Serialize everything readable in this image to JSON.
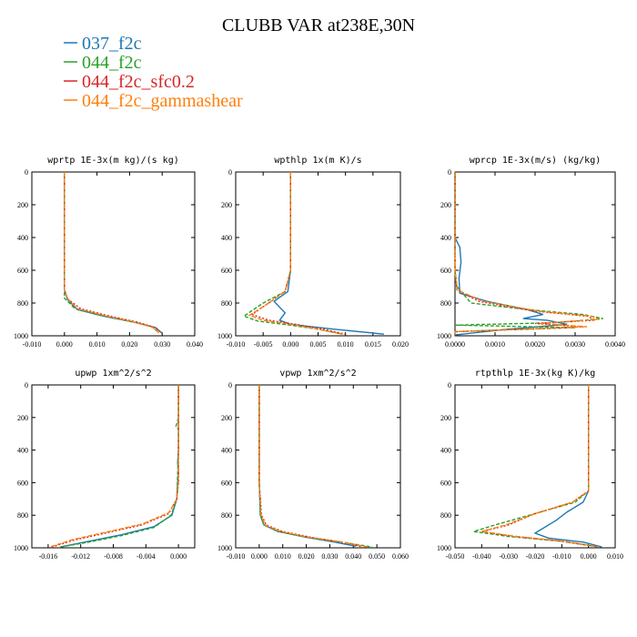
{
  "figure": {
    "title": "CLUBB VAR at238E,30N",
    "legend": [
      {
        "label": "037_f2c",
        "color": "#1f77b4"
      },
      {
        "label": "044_f2c",
        "color": "#2ca02c"
      },
      {
        "label": "044_f2c_sfc0.2",
        "color": "#d62728"
      },
      {
        "label": "044_f2c_gammashear",
        "color": "#ff7f0e"
      }
    ]
  },
  "chart_data": [
    {
      "type": "line",
      "title": "wprtp  1E-3x(m kg)/(s kg)",
      "xlim": [
        -0.01,
        0.04
      ],
      "xticks": [
        -0.01,
        0.0,
        0.01,
        0.02,
        0.03,
        0.04
      ],
      "xtick_labels": [
        "-0.010",
        "0.000",
        "0.010",
        "0.020",
        "0.030",
        "0.040"
      ],
      "ylim": [
        1000,
        0
      ],
      "yticks": [
        0,
        200,
        400,
        600,
        800,
        1000
      ],
      "ytick_labels": [
        "0",
        "200",
        "400",
        "600",
        "800",
        "1000"
      ],
      "series": [
        {
          "name": "037_f2c",
          "color": "#1f77b4",
          "dash": "",
          "x": [
            0.0,
            0.0,
            0.0,
            0.0,
            0.0,
            0.001,
            0.004,
            0.012,
            0.022,
            0.028,
            0.03
          ],
          "y": [
            0,
            200,
            400,
            600,
            720,
            780,
            840,
            880,
            920,
            950,
            985
          ]
        },
        {
          "name": "044_f2c",
          "color": "#2ca02c",
          "dash": "4,2",
          "x": [
            0.0,
            0.0,
            0.0,
            0.0,
            0.0,
            0.0,
            0.003,
            0.01,
            0.02,
            0.027,
            0.029
          ],
          "y": [
            0,
            200,
            400,
            600,
            720,
            770,
            830,
            870,
            910,
            945,
            980
          ]
        },
        {
          "name": "044_f2c_sfc0.2",
          "color": "#d62728",
          "dash": "2,2",
          "x": [
            0.0,
            0.0,
            0.0,
            0.0,
            0.0,
            0.001,
            0.005,
            0.013,
            0.022,
            0.028,
            0.03
          ],
          "y": [
            0,
            200,
            400,
            600,
            720,
            775,
            835,
            875,
            915,
            950,
            985
          ]
        },
        {
          "name": "044_f2c_gammashear",
          "color": "#ff7f0e",
          "dash": "5,2",
          "x": [
            0.0,
            0.0,
            0.0,
            0.0,
            0.0,
            0.001,
            0.004,
            0.012,
            0.021,
            0.027,
            0.029
          ],
          "y": [
            0,
            200,
            400,
            600,
            720,
            775,
            835,
            875,
            915,
            948,
            982
          ]
        }
      ]
    },
    {
      "type": "line",
      "title": "wpthlp  1x(m K)/s",
      "xlim": [
        -0.01,
        0.02
      ],
      "xticks": [
        -0.01,
        -0.005,
        0.0,
        0.005,
        0.01,
        0.015,
        0.02
      ],
      "xtick_labels": [
        "-0.010",
        "-0.005",
        "0.000",
        "0.005",
        "0.010",
        "0.015",
        "0.020"
      ],
      "ylim": [
        1000,
        0
      ],
      "yticks": [
        0,
        200,
        400,
        600,
        800,
        1000
      ],
      "ytick_labels": [
        "0",
        "200",
        "400",
        "600",
        "800",
        "1000"
      ],
      "series": [
        {
          "name": "037_f2c",
          "color": "#1f77b4",
          "dash": "",
          "x": [
            0.0,
            0.0,
            0.0,
            0.0,
            -0.0005,
            -0.003,
            -0.001,
            -0.002,
            0.0,
            0.008,
            0.017
          ],
          "y": [
            0,
            200,
            400,
            600,
            730,
            790,
            860,
            905,
            930,
            960,
            990
          ]
        },
        {
          "name": "044_f2c",
          "color": "#2ca02c",
          "dash": "4,2",
          "x": [
            0.0,
            0.0,
            0.0,
            0.0,
            -0.001,
            -0.005,
            -0.0085,
            -0.006,
            0.0,
            0.005,
            0.0095
          ],
          "y": [
            0,
            200,
            400,
            600,
            730,
            800,
            880,
            910,
            935,
            960,
            990
          ]
        },
        {
          "name": "044_f2c_sfc0.2",
          "color": "#d62728",
          "dash": "2,2",
          "x": [
            0.0,
            0.0,
            0.0,
            0.0,
            -0.001,
            -0.004,
            -0.007,
            -0.004,
            0.001,
            0.006,
            0.01
          ],
          "y": [
            0,
            200,
            400,
            600,
            730,
            800,
            870,
            905,
            930,
            960,
            990
          ]
        },
        {
          "name": "044_f2c_gammashear",
          "color": "#ff7f0e",
          "dash": "5,2",
          "x": [
            0.0,
            0.0,
            0.0,
            0.0,
            -0.001,
            -0.004,
            -0.0075,
            -0.005,
            0.0,
            0.005,
            0.0095
          ],
          "y": [
            0,
            200,
            400,
            600,
            730,
            800,
            875,
            905,
            930,
            960,
            990
          ]
        }
      ]
    },
    {
      "type": "line",
      "title": "wprcp  1E-3x(m/s) (kg/kg)",
      "xlim": [
        0.0,
        0.004
      ],
      "xticks": [
        0.0,
        0.001,
        0.002,
        0.003,
        0.004
      ],
      "xtick_labels": [
        "0.0000",
        "0.0010",
        "0.0020",
        "0.0030",
        "0.0040"
      ],
      "ylim": [
        1000,
        0
      ],
      "yticks": [
        0,
        200,
        400,
        600,
        800,
        1000
      ],
      "ytick_labels": [
        "0",
        "200",
        "400",
        "600",
        "800",
        "1000"
      ],
      "series": [
        {
          "name": "037_f2c",
          "color": "#1f77b4",
          "dash": "",
          "x": [
            0.0,
            0.0,
            0.0,
            0.00012,
            0.00015,
            0.0001,
            0.00012,
            0.0008,
            0.0018,
            0.0022,
            0.0017,
            0.0023,
            0.0028,
            0.0013,
            0.0
          ],
          "y": [
            0,
            200,
            400,
            460,
            550,
            650,
            740,
            790,
            840,
            870,
            895,
            905,
            930,
            960,
            995
          ]
        },
        {
          "name": "044_f2c",
          "color": "#2ca02c",
          "dash": "4,2",
          "x": [
            0.0,
            0.0,
            0.0,
            0.0,
            5e-05,
            0.0004,
            0.0018,
            0.0032,
            0.0037,
            0.0025,
            0.0,
            0.003,
            0.0,
            0.0
          ],
          "y": [
            0,
            200,
            400,
            600,
            700,
            800,
            840,
            870,
            895,
            920,
            935,
            950,
            975,
            995
          ]
        },
        {
          "name": "044_f2c_sfc0.2",
          "color": "#d62728",
          "dash": "2,2",
          "x": [
            0.0,
            0.0,
            0.0,
            0.0,
            5e-05,
            0.0006,
            0.002,
            0.0033,
            0.0035,
            0.002,
            0.0032,
            0.0,
            0.0
          ],
          "y": [
            0,
            200,
            400,
            600,
            720,
            790,
            850,
            880,
            905,
            925,
            945,
            975,
            995
          ]
        },
        {
          "name": "044_f2c_gammashear",
          "color": "#ff7f0e",
          "dash": "5,2",
          "x": [
            0.0,
            0.0,
            0.0,
            0.0,
            5e-05,
            0.0007,
            0.0021,
            0.0034,
            0.0036,
            0.0021,
            0.0033,
            0.0,
            0.0
          ],
          "y": [
            0,
            200,
            400,
            600,
            720,
            790,
            850,
            880,
            900,
            925,
            945,
            975,
            995
          ]
        }
      ]
    },
    {
      "type": "line",
      "title": "upwp  1xm^2/s^2",
      "xlim": [
        -0.018,
        0.002
      ],
      "xticks": [
        -0.016,
        -0.012,
        -0.008,
        -0.004,
        0.0
      ],
      "xtick_labels": [
        "-0.016",
        "-0.012",
        "-0.008",
        "-0.004",
        "0.000"
      ],
      "ylim": [
        1000,
        0
      ],
      "yticks": [
        0,
        200,
        400,
        600,
        800,
        1000
      ],
      "ytick_labels": [
        "0",
        "200",
        "400",
        "600",
        "800",
        "1000"
      ],
      "series": [
        {
          "name": "037_f2c",
          "color": "#1f77b4",
          "dash": "",
          "x": [
            0.0,
            0.0,
            0.0,
            -0.0001,
            0.0,
            -0.0002,
            -0.0008,
            -0.003,
            -0.007,
            -0.011,
            -0.0145
          ],
          "y": [
            0,
            200,
            400,
            480,
            520,
            700,
            800,
            870,
            920,
            960,
            995
          ]
        },
        {
          "name": "044_f2c",
          "color": "#2ca02c",
          "dash": "4,2",
          "x": [
            0.0,
            0.0,
            -0.0003,
            0.0,
            0.0,
            -0.0002,
            -0.0009,
            -0.003,
            -0.007,
            -0.011,
            -0.0145
          ],
          "y": [
            0,
            200,
            255,
            270,
            400,
            700,
            800,
            875,
            925,
            965,
            995
          ]
        },
        {
          "name": "044_f2c_sfc0.2",
          "color": "#d62728",
          "dash": "2,2",
          "x": [
            0.0,
            0.0,
            0.0,
            0.0,
            -0.0002,
            -0.0012,
            -0.0045,
            -0.009,
            -0.013,
            -0.0155
          ],
          "y": [
            0,
            200,
            400,
            600,
            700,
            790,
            860,
            910,
            955,
            995
          ]
        },
        {
          "name": "044_f2c_gammashear",
          "color": "#ff7f0e",
          "dash": "5,2",
          "x": [
            0.0,
            0.0,
            0.0,
            0.0,
            -0.0002,
            -0.0012,
            -0.0045,
            -0.009,
            -0.013,
            -0.0158
          ],
          "y": [
            0,
            200,
            400,
            600,
            700,
            785,
            855,
            905,
            950,
            995
          ]
        }
      ]
    },
    {
      "type": "line",
      "title": "vpwp  1xm^2/s^2",
      "xlim": [
        -0.01,
        0.06
      ],
      "xticks": [
        -0.01,
        0.0,
        0.01,
        0.02,
        0.03,
        0.04,
        0.05,
        0.06
      ],
      "xtick_labels": [
        "-0.010",
        "0.000",
        "0.010",
        "0.020",
        "0.030",
        "0.040",
        "0.050",
        "0.060"
      ],
      "ylim": [
        1000,
        0
      ],
      "yticks": [
        0,
        200,
        400,
        600,
        800,
        1000
      ],
      "ytick_labels": [
        "0",
        "200",
        "400",
        "600",
        "800",
        "1000"
      ],
      "series": [
        {
          "name": "037_f2c",
          "color": "#1f77b4",
          "dash": "",
          "x": [
            0.0,
            0.0,
            0.0,
            0.0,
            0.0005,
            0.002,
            0.008,
            0.02,
            0.032,
            0.041
          ],
          "y": [
            0,
            200,
            400,
            600,
            800,
            860,
            900,
            935,
            965,
            990
          ]
        },
        {
          "name": "044_f2c",
          "color": "#2ca02c",
          "dash": "4,2",
          "x": [
            0.0,
            0.0,
            0.0,
            0.0,
            0.0005,
            0.002,
            0.008,
            0.02,
            0.035,
            0.048
          ],
          "y": [
            0,
            200,
            400,
            600,
            800,
            860,
            900,
            935,
            965,
            995
          ]
        },
        {
          "name": "044_f2c_sfc0.2",
          "color": "#d62728",
          "dash": "2,2",
          "x": [
            0.0,
            0.0,
            0.0,
            0.0,
            0.001,
            0.003,
            0.01,
            0.022,
            0.035,
            0.044
          ],
          "y": [
            0,
            200,
            400,
            600,
            800,
            860,
            900,
            935,
            965,
            995
          ]
        },
        {
          "name": "044_f2c_gammashear",
          "color": "#ff7f0e",
          "dash": "5,2",
          "x": [
            0.0,
            0.0,
            0.0,
            0.0,
            0.0008,
            0.0025,
            0.009,
            0.021,
            0.035,
            0.046
          ],
          "y": [
            0,
            200,
            400,
            600,
            800,
            860,
            900,
            935,
            965,
            995
          ]
        }
      ]
    },
    {
      "type": "line",
      "title": "rtpthlp  1E-3x(kg K)/kg",
      "xlim": [
        -0.05,
        0.01
      ],
      "xticks": [
        -0.05,
        -0.04,
        -0.03,
        -0.02,
        -0.01,
        0.0,
        0.01
      ],
      "xtick_labels": [
        "-0.050",
        "-0.040",
        "-0.030",
        "-0.020",
        "-0.010",
        "0.000",
        "0.010"
      ],
      "ylim": [
        1000,
        0
      ],
      "yticks": [
        0,
        200,
        400,
        600,
        800,
        1000
      ],
      "ytick_labels": [
        "0",
        "200",
        "400",
        "600",
        "800",
        "1000"
      ],
      "series": [
        {
          "name": "037_f2c",
          "color": "#1f77b4",
          "dash": "",
          "x": [
            0.0,
            0.0,
            0.0,
            0.0,
            -0.002,
            -0.008,
            -0.012,
            -0.02,
            -0.015,
            -0.002,
            0.005
          ],
          "y": [
            0,
            200,
            400,
            650,
            720,
            780,
            830,
            910,
            940,
            965,
            995
          ]
        },
        {
          "name": "044_f2c",
          "color": "#2ca02c",
          "dash": "4,2",
          "x": [
            0.0,
            0.0,
            0.0,
            0.0,
            -0.005,
            -0.02,
            -0.035,
            -0.043,
            -0.03,
            -0.01,
            0.004
          ],
          "y": [
            0,
            200,
            400,
            650,
            720,
            790,
            860,
            900,
            930,
            960,
            995
          ]
        },
        {
          "name": "044_f2c_sfc0.2",
          "color": "#d62728",
          "dash": "2,2",
          "x": [
            0.0,
            0.0,
            0.0,
            0.0,
            -0.006,
            -0.02,
            -0.03,
            -0.04,
            -0.028,
            -0.01,
            0.004
          ],
          "y": [
            0,
            200,
            400,
            650,
            720,
            790,
            860,
            900,
            930,
            960,
            995
          ]
        },
        {
          "name": "044_f2c_gammashear",
          "color": "#ff7f0e",
          "dash": "5,2",
          "x": [
            0.0,
            0.0,
            0.0,
            0.0,
            -0.006,
            -0.02,
            -0.031,
            -0.04,
            -0.027,
            -0.009,
            0.004
          ],
          "y": [
            0,
            200,
            400,
            650,
            720,
            790,
            860,
            900,
            930,
            960,
            995
          ]
        }
      ]
    }
  ]
}
